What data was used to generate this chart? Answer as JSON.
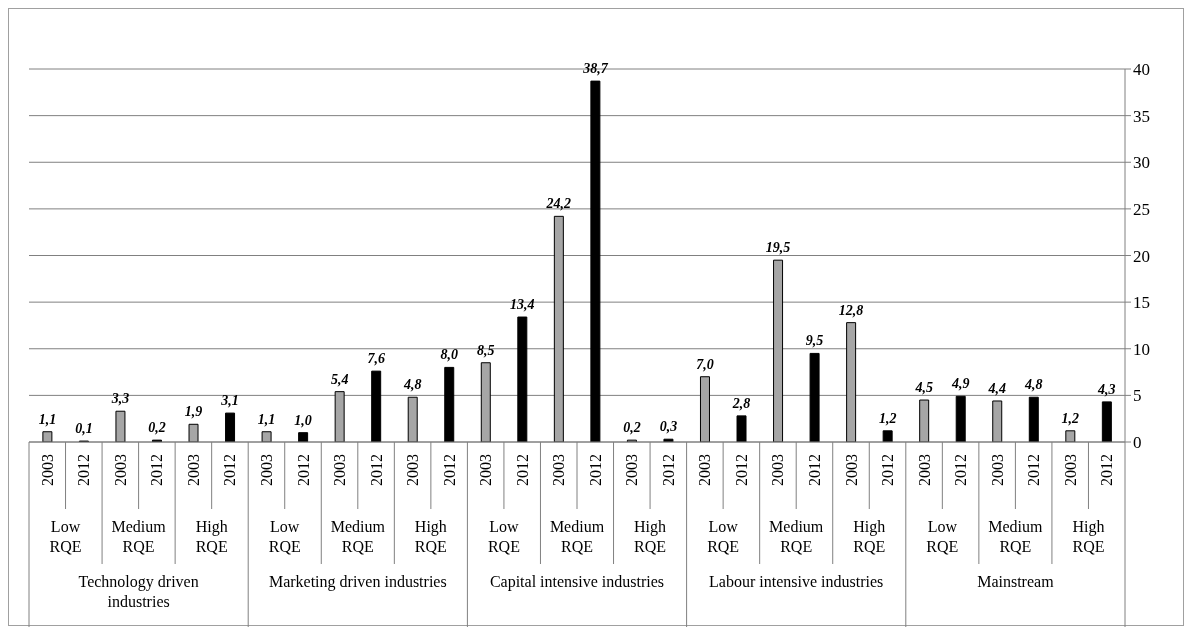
{
  "chart_data": {
    "type": "bar",
    "categories": [
      "2003",
      "2012",
      "2003",
      "2012",
      "2003",
      "2012",
      "2003",
      "2012",
      "2003",
      "2012",
      "2003",
      "2012",
      "2003",
      "2012",
      "2003",
      "2012",
      "2003",
      "2012",
      "2003",
      "2012",
      "2003",
      "2012",
      "2003",
      "2012",
      "2003",
      "2012",
      "2003",
      "2012",
      "2003",
      "2012"
    ],
    "values": [
      1.1,
      0.1,
      3.3,
      0.2,
      1.9,
      3.1,
      1.1,
      1.0,
      5.4,
      7.6,
      4.8,
      8.0,
      8.5,
      13.4,
      24.2,
      38.7,
      0.2,
      0.3,
      7.0,
      2.8,
      19.5,
      9.5,
      12.8,
      1.2,
      4.5,
      4.9,
      4.4,
      4.8,
      1.2,
      4.3
    ],
    "value_labels": [
      "1,1",
      "0,1",
      "3,3",
      "0,2",
      "1,9",
      "3,1",
      "1,1",
      "1,0",
      "5,4",
      "7,6",
      "4,8",
      "8,0",
      "8,5",
      "13,4",
      "24,2",
      "38,7",
      "0,2",
      "0,3",
      "7,0",
      "2,8",
      "19,5",
      "9,5",
      "12,8",
      "1,2",
      "4,5",
      "4,9",
      "4,4",
      "4,8",
      "1,2",
      "4,3"
    ],
    "colors": [
      "#a6a6a6",
      "#000000",
      "#a6a6a6",
      "#000000",
      "#a6a6a6",
      "#000000",
      "#a6a6a6",
      "#000000",
      "#a6a6a6",
      "#000000",
      "#a6a6a6",
      "#000000",
      "#a6a6a6",
      "#000000",
      "#a6a6a6",
      "#000000",
      "#a6a6a6",
      "#000000",
      "#a6a6a6",
      "#000000",
      "#a6a6a6",
      "#000000",
      "#a6a6a6",
      "#000000",
      "#a6a6a6",
      "#000000",
      "#a6a6a6",
      "#000000",
      "#a6a6a6",
      "#000000"
    ],
    "annotations": [
      "Low RQE",
      "Medium RQE",
      "High RQE",
      "Low RQE",
      "Medium RQE",
      "High RQE",
      "Low RQE",
      "Medium RQE",
      "High RQE",
      "Low RQE",
      "Medium RQE",
      "High RQE",
      "Low RQE",
      "Medium RQE",
      "High RQE",
      "Technology driven industries",
      "Marketing driven industries",
      "Capital intensive industries",
      "Labour intensive industries",
      "Mainstream"
    ],
    "ylim": [
      0,
      40
    ],
    "yticks": [
      0,
      5,
      10,
      15,
      20,
      25,
      30,
      35,
      40
    ],
    "grid": "y",
    "legend": false
  }
}
